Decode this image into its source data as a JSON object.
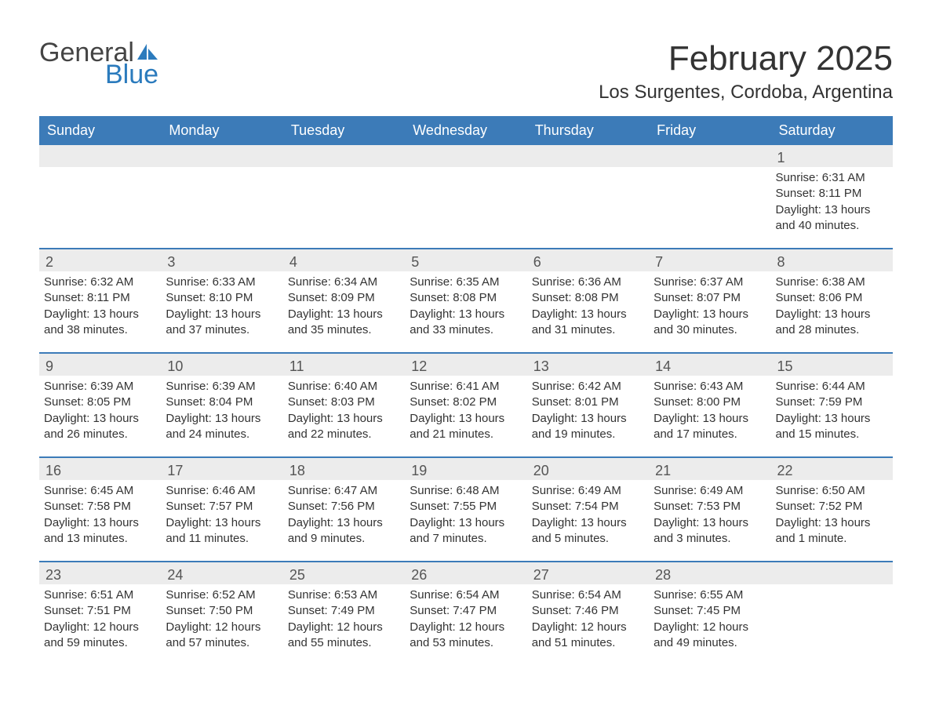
{
  "logo": {
    "word1": "General",
    "word2": "Blue",
    "icon_color": "#2b7bbd"
  },
  "title": "February 2025",
  "location": "Los Surgentes, Cordoba, Argentina",
  "colors": {
    "header_bg": "#3c7bb8",
    "header_text": "#ffffff",
    "daynum_bg": "#ececec",
    "row_border": "#3c7bb8",
    "text": "#333333"
  },
  "daynames": [
    "Sunday",
    "Monday",
    "Tuesday",
    "Wednesday",
    "Thursday",
    "Friday",
    "Saturday"
  ],
  "weeks": [
    [
      {
        "day": "",
        "sunrise": "",
        "sunset": "",
        "daylight": ""
      },
      {
        "day": "",
        "sunrise": "",
        "sunset": "",
        "daylight": ""
      },
      {
        "day": "",
        "sunrise": "",
        "sunset": "",
        "daylight": ""
      },
      {
        "day": "",
        "sunrise": "",
        "sunset": "",
        "daylight": ""
      },
      {
        "day": "",
        "sunrise": "",
        "sunset": "",
        "daylight": ""
      },
      {
        "day": "",
        "sunrise": "",
        "sunset": "",
        "daylight": ""
      },
      {
        "day": "1",
        "sunrise": "Sunrise: 6:31 AM",
        "sunset": "Sunset: 8:11 PM",
        "daylight": "Daylight: 13 hours and 40 minutes."
      }
    ],
    [
      {
        "day": "2",
        "sunrise": "Sunrise: 6:32 AM",
        "sunset": "Sunset: 8:11 PM",
        "daylight": "Daylight: 13 hours and 38 minutes."
      },
      {
        "day": "3",
        "sunrise": "Sunrise: 6:33 AM",
        "sunset": "Sunset: 8:10 PM",
        "daylight": "Daylight: 13 hours and 37 minutes."
      },
      {
        "day": "4",
        "sunrise": "Sunrise: 6:34 AM",
        "sunset": "Sunset: 8:09 PM",
        "daylight": "Daylight: 13 hours and 35 minutes."
      },
      {
        "day": "5",
        "sunrise": "Sunrise: 6:35 AM",
        "sunset": "Sunset: 8:08 PM",
        "daylight": "Daylight: 13 hours and 33 minutes."
      },
      {
        "day": "6",
        "sunrise": "Sunrise: 6:36 AM",
        "sunset": "Sunset: 8:08 PM",
        "daylight": "Daylight: 13 hours and 31 minutes."
      },
      {
        "day": "7",
        "sunrise": "Sunrise: 6:37 AM",
        "sunset": "Sunset: 8:07 PM",
        "daylight": "Daylight: 13 hours and 30 minutes."
      },
      {
        "day": "8",
        "sunrise": "Sunrise: 6:38 AM",
        "sunset": "Sunset: 8:06 PM",
        "daylight": "Daylight: 13 hours and 28 minutes."
      }
    ],
    [
      {
        "day": "9",
        "sunrise": "Sunrise: 6:39 AM",
        "sunset": "Sunset: 8:05 PM",
        "daylight": "Daylight: 13 hours and 26 minutes."
      },
      {
        "day": "10",
        "sunrise": "Sunrise: 6:39 AM",
        "sunset": "Sunset: 8:04 PM",
        "daylight": "Daylight: 13 hours and 24 minutes."
      },
      {
        "day": "11",
        "sunrise": "Sunrise: 6:40 AM",
        "sunset": "Sunset: 8:03 PM",
        "daylight": "Daylight: 13 hours and 22 minutes."
      },
      {
        "day": "12",
        "sunrise": "Sunrise: 6:41 AM",
        "sunset": "Sunset: 8:02 PM",
        "daylight": "Daylight: 13 hours and 21 minutes."
      },
      {
        "day": "13",
        "sunrise": "Sunrise: 6:42 AM",
        "sunset": "Sunset: 8:01 PM",
        "daylight": "Daylight: 13 hours and 19 minutes."
      },
      {
        "day": "14",
        "sunrise": "Sunrise: 6:43 AM",
        "sunset": "Sunset: 8:00 PM",
        "daylight": "Daylight: 13 hours and 17 minutes."
      },
      {
        "day": "15",
        "sunrise": "Sunrise: 6:44 AM",
        "sunset": "Sunset: 7:59 PM",
        "daylight": "Daylight: 13 hours and 15 minutes."
      }
    ],
    [
      {
        "day": "16",
        "sunrise": "Sunrise: 6:45 AM",
        "sunset": "Sunset: 7:58 PM",
        "daylight": "Daylight: 13 hours and 13 minutes."
      },
      {
        "day": "17",
        "sunrise": "Sunrise: 6:46 AM",
        "sunset": "Sunset: 7:57 PM",
        "daylight": "Daylight: 13 hours and 11 minutes."
      },
      {
        "day": "18",
        "sunrise": "Sunrise: 6:47 AM",
        "sunset": "Sunset: 7:56 PM",
        "daylight": "Daylight: 13 hours and 9 minutes."
      },
      {
        "day": "19",
        "sunrise": "Sunrise: 6:48 AM",
        "sunset": "Sunset: 7:55 PM",
        "daylight": "Daylight: 13 hours and 7 minutes."
      },
      {
        "day": "20",
        "sunrise": "Sunrise: 6:49 AM",
        "sunset": "Sunset: 7:54 PM",
        "daylight": "Daylight: 13 hours and 5 minutes."
      },
      {
        "day": "21",
        "sunrise": "Sunrise: 6:49 AM",
        "sunset": "Sunset: 7:53 PM",
        "daylight": "Daylight: 13 hours and 3 minutes."
      },
      {
        "day": "22",
        "sunrise": "Sunrise: 6:50 AM",
        "sunset": "Sunset: 7:52 PM",
        "daylight": "Daylight: 13 hours and 1 minute."
      }
    ],
    [
      {
        "day": "23",
        "sunrise": "Sunrise: 6:51 AM",
        "sunset": "Sunset: 7:51 PM",
        "daylight": "Daylight: 12 hours and 59 minutes."
      },
      {
        "day": "24",
        "sunrise": "Sunrise: 6:52 AM",
        "sunset": "Sunset: 7:50 PM",
        "daylight": "Daylight: 12 hours and 57 minutes."
      },
      {
        "day": "25",
        "sunrise": "Sunrise: 6:53 AM",
        "sunset": "Sunset: 7:49 PM",
        "daylight": "Daylight: 12 hours and 55 minutes."
      },
      {
        "day": "26",
        "sunrise": "Sunrise: 6:54 AM",
        "sunset": "Sunset: 7:47 PM",
        "daylight": "Daylight: 12 hours and 53 minutes."
      },
      {
        "day": "27",
        "sunrise": "Sunrise: 6:54 AM",
        "sunset": "Sunset: 7:46 PM",
        "daylight": "Daylight: 12 hours and 51 minutes."
      },
      {
        "day": "28",
        "sunrise": "Sunrise: 6:55 AM",
        "sunset": "Sunset: 7:45 PM",
        "daylight": "Daylight: 12 hours and 49 minutes."
      },
      {
        "day": "",
        "sunrise": "",
        "sunset": "",
        "daylight": ""
      }
    ]
  ]
}
